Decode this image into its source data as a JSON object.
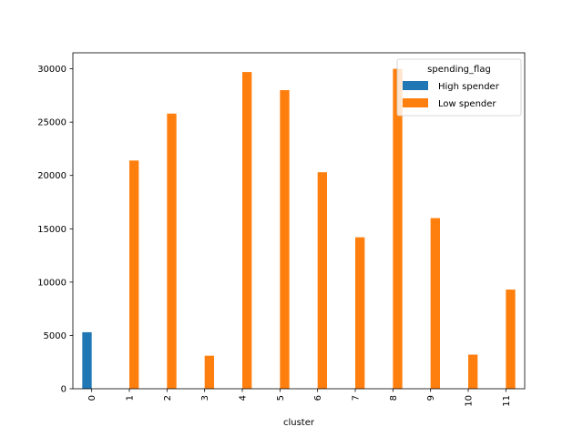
{
  "chart_data": {
    "type": "bar",
    "xlabel": "cluster",
    "ylabel": "",
    "ylim": [
      0,
      31500
    ],
    "yticks": [
      0,
      5000,
      10000,
      15000,
      20000,
      25000,
      30000
    ],
    "categories": [
      "0",
      "1",
      "2",
      "3",
      "4",
      "5",
      "6",
      "7",
      "8",
      "9",
      "10",
      "11"
    ],
    "legend": {
      "title": "spending_flag",
      "placement": "top-right"
    },
    "series": [
      {
        "name": "High spender",
        "color": "#1f77b4",
        "values": [
          5300,
          null,
          null,
          null,
          null,
          null,
          null,
          null,
          null,
          null,
          null,
          null
        ]
      },
      {
        "name": "Low spender",
        "color": "#ff7f0e",
        "values": [
          null,
          21400,
          25800,
          3100,
          29700,
          28000,
          20300,
          14200,
          30000,
          16000,
          3200,
          9300
        ]
      }
    ]
  }
}
